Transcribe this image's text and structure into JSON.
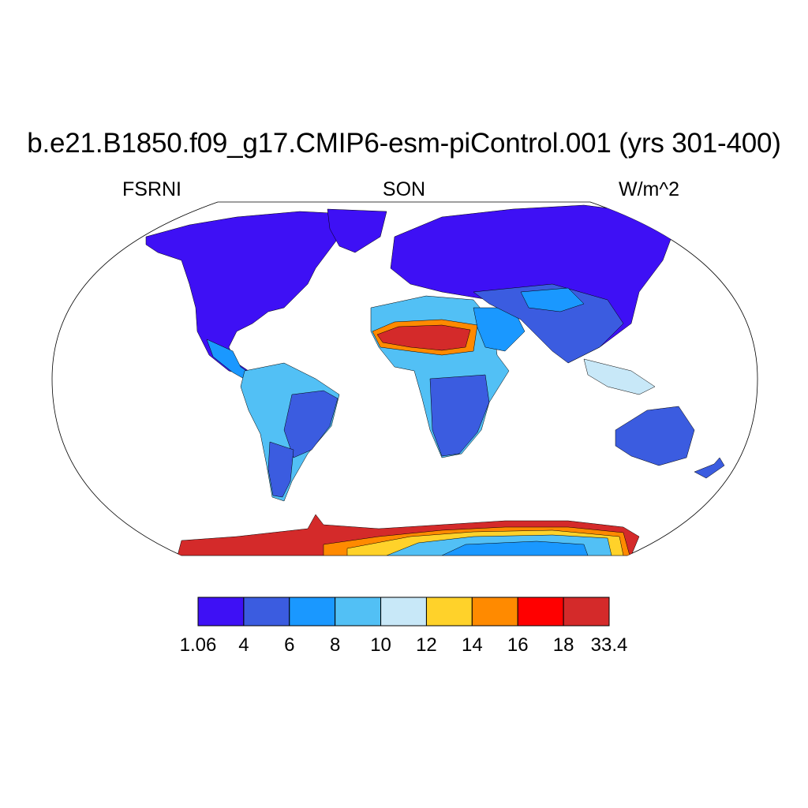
{
  "title": "b.e21.B1850.f09_g17.CMIP6-esm-piControl.001 (yrs 301-400)",
  "subtitle_left": "FSRNI",
  "subtitle_center": "SON",
  "subtitle_right": "W/m^2",
  "colorbar": {
    "labels": [
      "1.06",
      "4",
      "6",
      "8",
      "10",
      "12",
      "14",
      "16",
      "18",
      "33.4"
    ],
    "colors": [
      "#3e10f5",
      "#3b5ce0",
      "#1a98ff",
      "#52c0f5",
      "#c8e8f8",
      "#ffd22a",
      "#ff8a00",
      "#ff0000",
      "#d42a2a"
    ]
  },
  "map": {
    "projection": "robinson",
    "ocean_color": "#ffffff",
    "colors": {
      "c1": "#3e10f5",
      "c2": "#3b5ce0",
      "c3": "#1a98ff",
      "c4": "#52c0f5",
      "c5": "#c8e8f8",
      "c6": "#ffd22a",
      "c7": "#ff8a00",
      "c8": "#ff0000",
      "c9": "#d42a2a"
    }
  }
}
